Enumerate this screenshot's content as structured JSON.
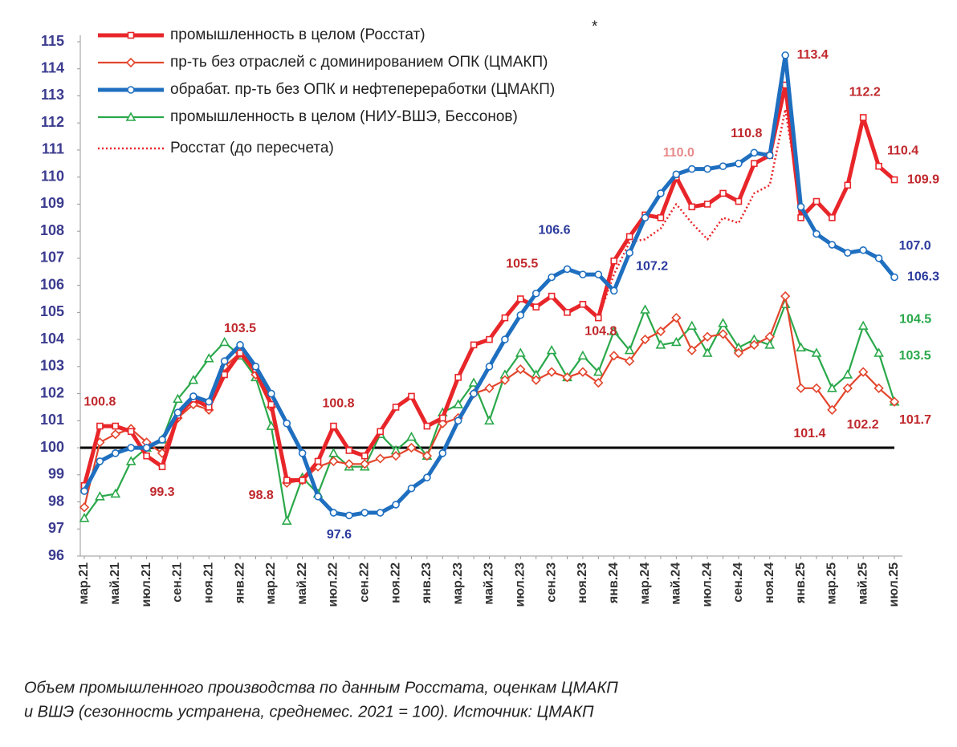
{
  "chart_data": {
    "type": "line",
    "categories": [
      "мар.21",
      null,
      "май.21",
      null,
      "июл.21",
      null,
      "сен.21",
      null,
      "ноя.21",
      null,
      "янв.22",
      null,
      "мар.22",
      null,
      "май.22",
      null,
      "июл.22",
      null,
      "сен.22",
      null,
      "ноя.22",
      null,
      "янв.23",
      null,
      "мар.23",
      null,
      "май.23",
      null,
      "июл.23",
      null,
      "сен.23",
      null,
      "ноя.23",
      null,
      "янв.24",
      null,
      "мар.24",
      null,
      "май.24",
      null,
      "июл.24",
      null,
      "сен.24",
      null,
      "ноя.24",
      null,
      "янв.25",
      null,
      "мар.25",
      null,
      "май.25",
      null,
      "июл.25"
    ],
    "ylim": [
      96,
      115
    ],
    "yticks": [
      96,
      97,
      98,
      99,
      100,
      101,
      102,
      103,
      104,
      105,
      106,
      107,
      108,
      109,
      110,
      111,
      112,
      113,
      114,
      115
    ],
    "reference_line": 100,
    "legend": "top-left",
    "legend_note": "*",
    "series": [
      {
        "name": "промышленность в целом (Росстат)",
        "color": "#e8262a",
        "marker": "square",
        "line": "thick",
        "values": [
          98.6,
          100.8,
          100.8,
          100.6,
          99.7,
          99.3,
          101.2,
          101.8,
          101.5,
          102.7,
          103.5,
          102.9,
          101.6,
          98.8,
          98.8,
          99.5,
          100.8,
          99.9,
          99.7,
          100.6,
          101.5,
          101.9,
          100.8,
          101.1,
          102.6,
          103.8,
          104.0,
          104.8,
          105.5,
          105.2,
          105.6,
          105.0,
          105.3,
          104.8,
          106.9,
          107.8,
          108.6,
          108.5,
          110.0,
          108.9,
          109.0,
          109.4,
          109.1,
          110.5,
          110.8,
          113.4,
          108.5,
          109.1,
          108.5,
          109.7,
          112.2,
          110.4,
          109.9
        ]
      },
      {
        "name": "пр-ть без отраслей с доминированием ОПК (ЦМАКП)",
        "color": "#e3452c",
        "marker": "diamond",
        "line": "thin",
        "values": [
          97.8,
          100.2,
          100.5,
          100.7,
          100.2,
          99.8,
          101.1,
          101.6,
          101.4,
          103.0,
          103.5,
          102.7,
          101.5,
          98.7,
          98.8,
          99.3,
          99.5,
          99.4,
          99.4,
          99.6,
          99.7,
          100.0,
          99.7,
          100.9,
          101.1,
          102.0,
          102.2,
          102.5,
          102.9,
          102.5,
          102.8,
          102.6,
          102.8,
          102.4,
          103.4,
          103.2,
          104.0,
          104.3,
          104.8,
          103.6,
          104.1,
          104.2,
          103.5,
          103.8,
          104.1,
          105.6,
          102.2,
          102.2,
          101.4,
          102.2,
          102.8,
          102.2,
          101.7
        ]
      },
      {
        "name": "обрабат. пр-ть без ОПК и нефтепереработки (ЦМАКП)",
        "color": "#1f6fc0",
        "marker": "circle",
        "line": "thick",
        "values": [
          98.4,
          99.5,
          99.8,
          100.0,
          100.0,
          100.3,
          101.3,
          101.9,
          101.7,
          103.2,
          103.8,
          103.0,
          102.0,
          100.9,
          99.8,
          98.2,
          97.6,
          97.5,
          97.6,
          97.6,
          97.9,
          98.5,
          98.9,
          99.8,
          101.0,
          102.0,
          103.0,
          104.0,
          104.9,
          105.7,
          106.3,
          106.6,
          106.4,
          106.4,
          105.8,
          107.2,
          108.5,
          109.4,
          110.1,
          110.3,
          110.3,
          110.4,
          110.5,
          110.9,
          110.8,
          114.5,
          108.9,
          107.9,
          107.5,
          107.2,
          107.3,
          107.0,
          106.3
        ]
      },
      {
        "name": "промышленность в целом (НИУ-ВШЭ, Бессонов)",
        "color": "#2aa84a",
        "marker": "triangle",
        "line": "thin",
        "values": [
          97.4,
          98.2,
          98.3,
          99.5,
          100.0,
          100.3,
          101.8,
          102.5,
          103.3,
          103.9,
          103.4,
          102.6,
          100.8,
          97.3,
          98.9,
          98.3,
          99.8,
          99.3,
          99.3,
          100.5,
          99.9,
          100.4,
          99.7,
          101.3,
          101.6,
          102.4,
          101.0,
          102.7,
          103.5,
          102.7,
          103.6,
          102.6,
          103.4,
          102.8,
          104.3,
          103.6,
          105.1,
          103.8,
          103.9,
          104.5,
          103.5,
          104.6,
          103.7,
          104.0,
          103.8,
          105.3,
          103.7,
          103.5,
          102.2,
          102.7,
          104.5,
          103.5,
          101.7
        ]
      },
      {
        "name": "Росстат (до пересчета)",
        "color": "#e8262a",
        "marker": "none",
        "line": "dotted",
        "values": [
          null,
          null,
          null,
          null,
          null,
          null,
          null,
          null,
          null,
          null,
          null,
          null,
          null,
          null,
          null,
          null,
          null,
          null,
          null,
          null,
          null,
          null,
          null,
          null,
          null,
          null,
          null,
          null,
          null,
          null,
          null,
          null,
          null,
          104.8,
          106.4,
          107.6,
          107.7,
          108.1,
          109.0,
          108.3,
          107.7,
          108.5,
          108.3,
          109.4,
          109.7,
          112.5,
          108.9,
          null,
          null,
          null,
          null,
          null,
          null
        ]
      }
    ],
    "annotations": [
      {
        "text": "100.8",
        "series": 0,
        "point": 1,
        "color": "#c0282c"
      },
      {
        "text": "99.3",
        "series": 0,
        "point": 5,
        "color": "#c0282c"
      },
      {
        "text": "103.5",
        "series": 0,
        "point": 10,
        "color": "#c0282c"
      },
      {
        "text": "98.8",
        "series": 0,
        "point": 13,
        "color": "#c0282c"
      },
      {
        "text": "97.6",
        "series": 2,
        "point": 16,
        "color": "#2b3a9c"
      },
      {
        "text": "100.8",
        "series": 0,
        "point": 16,
        "color": "#c0282c"
      },
      {
        "text": "105.5",
        "series": 0,
        "point": 28,
        "color": "#c0282c"
      },
      {
        "text": "106.6",
        "series": 2,
        "point": 31,
        "color": "#2b3a9c"
      },
      {
        "text": "104.8",
        "series": 0,
        "point": 33,
        "color": "#c0282c"
      },
      {
        "text": "107.2",
        "series": 2,
        "point": 35,
        "color": "#2b3a9c"
      },
      {
        "text": "110.0",
        "series": 0,
        "point": 38,
        "color": "#e88a8a"
      },
      {
        "text": "110.8",
        "series": 0,
        "point": 44,
        "color": "#c0282c"
      },
      {
        "text": "113.4",
        "series": 0,
        "point": 45,
        "color": "#c0282c"
      },
      {
        "text": "112.2",
        "series": 0,
        "point": 50,
        "color": "#c0282c"
      },
      {
        "text": "110.4",
        "series": 0,
        "point": 51,
        "color": "#c0282c"
      },
      {
        "text": "109.9",
        "series": 0,
        "point": 52,
        "color": "#c0282c"
      },
      {
        "text": "107.0",
        "series": 2,
        "point": 51,
        "color": "#2b3a9c"
      },
      {
        "text": "106.3",
        "series": 2,
        "point": 52,
        "color": "#2b3a9c"
      },
      {
        "text": "104.5",
        "series": 3,
        "point": 50,
        "color": "#2aa84a"
      },
      {
        "text": "103.5",
        "series": 3,
        "point": 51,
        "color": "#2aa84a"
      },
      {
        "text": "101.4",
        "series": 1,
        "point": 48,
        "color": "#c0282c"
      },
      {
        "text": "102.2",
        "series": 1,
        "point": 51,
        "color": "#c0282c"
      },
      {
        "text": "101.7",
        "series": 1,
        "point": 52,
        "color": "#c0282c"
      }
    ],
    "caption": [
      "Объем промышленного производства по данным Росстата, оценкам ЦМАКП",
      "и ВШЭ (сезонность устранена, среднемес. 2021 = 100).  Источник: ЦМАКП"
    ]
  }
}
